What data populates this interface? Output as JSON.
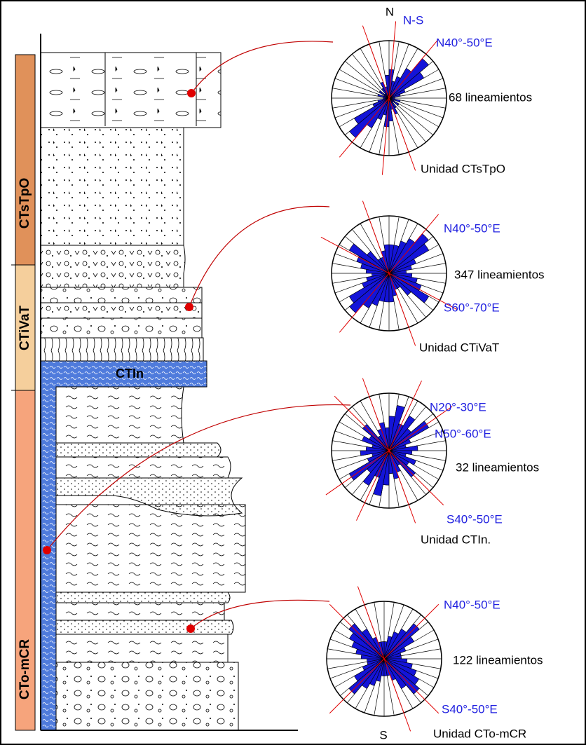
{
  "sidebar": [
    {
      "label": "CTsTpO"
    },
    {
      "label": "CTiVaT"
    },
    {
      "label": "CTo-mCR"
    }
  ],
  "column_label": "CTIn",
  "compass": {
    "north": "N",
    "south": "S"
  },
  "roses": [
    {
      "count": "68 lineamientos",
      "unit": "Unidad CTsTpO",
      "directions": [
        "N-S",
        "N40°-50°E"
      ],
      "petals": [
        5,
        3,
        4,
        6,
        9,
        7,
        3,
        2,
        1,
        1,
        2,
        1,
        2,
        1,
        2,
        3,
        2,
        4
      ]
    },
    {
      "count": "347 lineamientos",
      "unit": "Unidad CTiVaT",
      "directions": [
        "N40°-50°E",
        "S60°-70°E"
      ],
      "petals": [
        5,
        5,
        6,
        7,
        9,
        8,
        5,
        4,
        3,
        4,
        5,
        6,
        8,
        5,
        3,
        3,
        4,
        5
      ]
    },
    {
      "count": "32 lineamientos",
      "unit": "Unidad CTIn.",
      "directions": [
        "N20°-30°E",
        "N50°-60°E",
        "S40°-50°E"
      ],
      "petals": [
        6,
        8,
        5,
        7,
        5,
        8,
        4,
        3,
        5,
        4,
        3,
        5,
        4,
        6,
        3,
        4,
        5,
        4
      ]
    },
    {
      "count": "122 lineamientos",
      "unit": "Unidad CTo-mCR",
      "directions": [
        "N40°-50°E",
        "S40°-50°E"
      ],
      "petals": [
        3,
        4,
        5,
        6,
        8,
        6,
        4,
        3,
        3,
        4,
        5,
        6,
        7,
        8,
        6,
        4,
        3,
        3
      ]
    }
  ]
}
